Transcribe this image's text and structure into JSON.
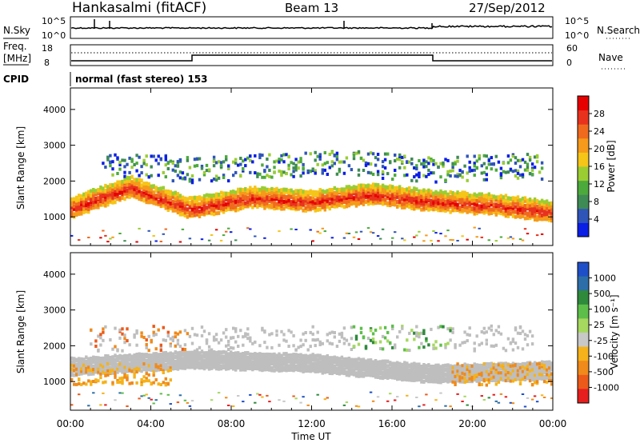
{
  "header": {
    "station": "Hankasalmi (fitACF)",
    "beam": "Beam 13",
    "date": "27/Sep/2012"
  },
  "noise_panel": {
    "left_label": "N.Sky",
    "right_label": "N.Search",
    "left_ticks": [
      "10^5",
      "10^0"
    ],
    "right_ticks": [
      "10^5",
      "10^0"
    ],
    "line_style_right": "dotted"
  },
  "freq_panel": {
    "left_label_top": "Freq.",
    "left_label_unit": "[MHz]",
    "right_label": "Nave",
    "left_ticks": [
      "18",
      "8"
    ],
    "right_ticks": [
      "60",
      "0"
    ]
  },
  "cpid_panel": {
    "label": "CPID",
    "text": "normal (fast stereo) 153"
  },
  "colors": {
    "power": [
      "#0a1ee6",
      "#2f55b8",
      "#3f8b55",
      "#4caa3c",
      "#9acd32",
      "#f5c518",
      "#f59a1a",
      "#f06a1e",
      "#e8321e",
      "#e60000"
    ],
    "velocity": [
      "#1f4fc8",
      "#2d6ea8",
      "#2f8a3c",
      "#5dbf4a",
      "#a6d860",
      "#c8c8c8",
      "#f5b21a",
      "#f08a1a",
      "#ec5a1a",
      "#e61e1e"
    ],
    "ground_scatter": "#bebebe"
  },
  "chart_data": [
    {
      "type": "heatmap",
      "panel": "power",
      "ylabel": "Slant Range [km]",
      "ylim": [
        200,
        4600
      ],
      "yticks": [
        1000,
        2000,
        3000,
        4000
      ],
      "xlim": [
        0,
        24
      ],
      "colorbar": {
        "label": "Power [dB]",
        "ticks": [
          "4",
          "8",
          "12",
          "16",
          "20",
          "24",
          "28"
        ],
        "range": [
          0,
          32
        ]
      },
      "features": [
        {
          "name": "main-echo-band",
          "hours": [
            0,
            3,
            6,
            9,
            12,
            15,
            18,
            21,
            24
          ],
          "range_km": [
            1200,
            1800,
            1200,
            1500,
            1400,
            1600,
            1400,
            1300,
            1100
          ],
          "power_db": 28
        },
        {
          "name": "upper-band",
          "hours": [
            2,
            6,
            10,
            14,
            18,
            22
          ],
          "range_km": [
            2500,
            2300,
            2400,
            2500,
            2300,
            2400
          ],
          "power_db": 12
        }
      ]
    },
    {
      "type": "heatmap",
      "panel": "velocity",
      "ylabel": "Slant Range [km]",
      "ylim": [
        200,
        4600
      ],
      "yticks": [
        1000,
        2000,
        3000,
        4000
      ],
      "xlim": [
        0,
        24
      ],
      "colorbar": {
        "label": "Velocity [m s⁻¹]",
        "ticks": [
          "1000",
          "500",
          "100",
          "25",
          "-25",
          "-100",
          "-500",
          "-1000"
        ]
      },
      "features": [
        {
          "name": "ground-scatter-band",
          "hours": [
            0,
            6,
            12,
            18,
            24
          ],
          "range_km": [
            1400,
            1600,
            1500,
            1200,
            1300
          ],
          "velocity": 0
        },
        {
          "name": "positive-velocity-region",
          "hours": [
            14,
            19
          ],
          "range_km": [
            2200,
            2100
          ],
          "velocity": 150
        }
      ]
    }
  ],
  "time_axis": {
    "label": "Time UT",
    "ticks": [
      "00:00",
      "04:00",
      "08:00",
      "12:00",
      "16:00",
      "20:00",
      "00:00"
    ]
  },
  "range_tick_labels": [
    "1000",
    "2000",
    "3000",
    "4000"
  ]
}
